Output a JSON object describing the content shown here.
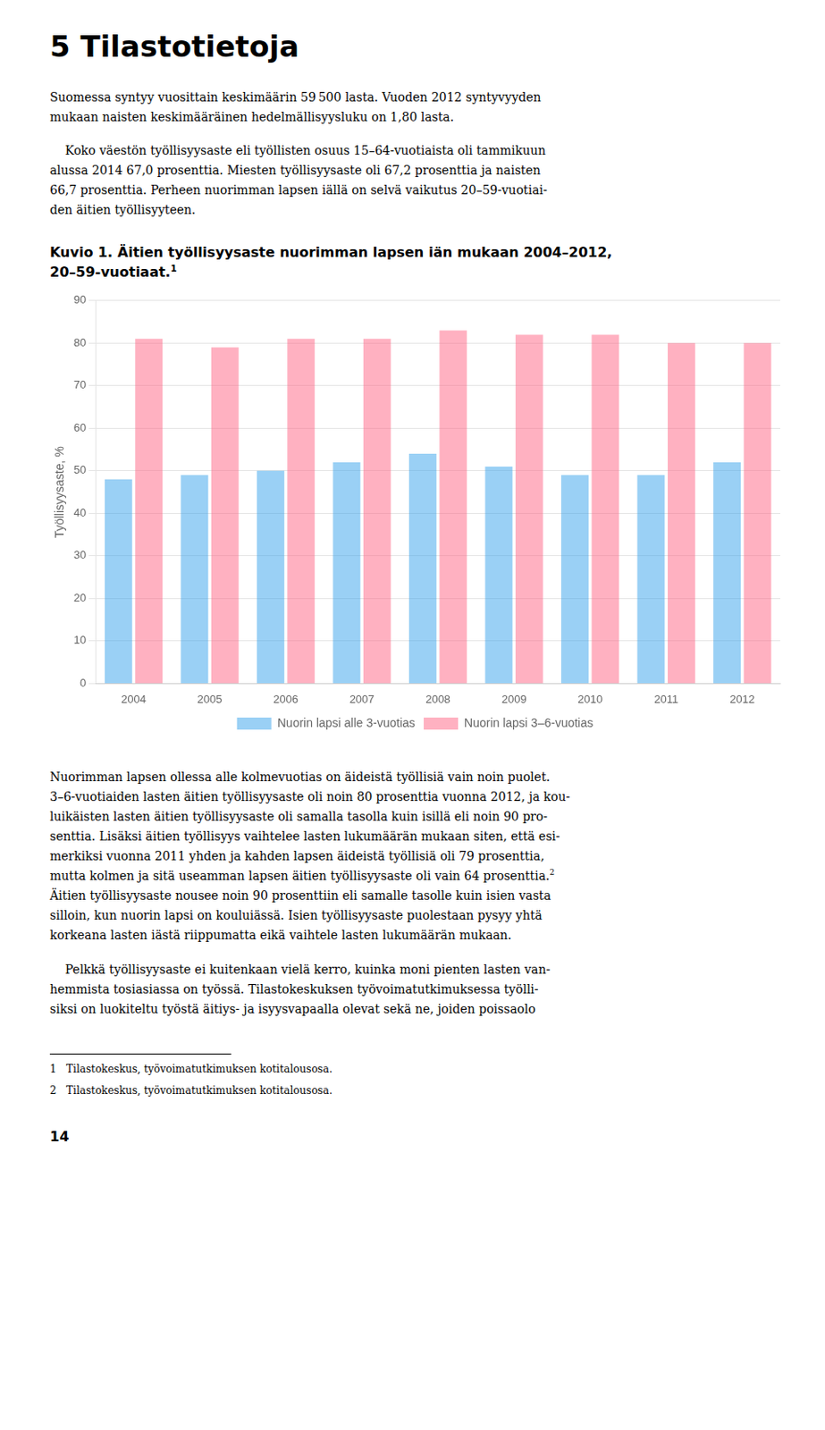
{
  "page": {
    "heading": "5 Tilastotietoja",
    "paragraphs_before": [
      [
        "Suomessa syntyy vuosittain keskimäärin 59 500 lasta. Vuoden 2012 syntyvyyden\nmukaan naisten keskimääräinen hedelmällisyysluku on 1,80 lasta."
      ],
      [
        "    Koko väestön työllisyysaste eli työllisten osuus 15–64-vuotiaista oli tammikuun\nalussa 2014 67,0 prosenttia. Miesten työllisyysaste oli 67,2 prosenttia ja naisten\n66,7 prosenttia. Perheen nuorimman lapsen iällä on selvä vaikutus 20–59-vuotiai-\nden äitien työllisyyteen."
      ]
    ],
    "paragraphs_after": [
      [
        "Nuorimman lapsen ollessa alle kolmevuotias on äideistä työllisiä vain noin puolet.\n3–6-vuotiaiden lasten äitien työllisyysaste oli noin 80 prosenttia vuonna 2012, ja kou-\nluikäisten lasten äitien työllisyysaste oli samalla tasolla kuin isillä eli noin 90 pro-\nsenttia. Lisäksi äitien työllisyys vaihtelee lasten lukumäärän mukaan siten, että esi-\nmerkiksi vuonna 2011 yhden ja kahden lapsen äideistä työllisiä oli 79 prosenttia,\nmutta kolmen ja sitä useamman lapsen äitien työllisyysaste oli vain 64 prosenttia.",
        {
          "sup": "2"
        },
        "\nÄitien työllisyysaste nousee noin 90 prosenttiin eli samalle tasolle kuin isien vasta\nsilloin, kun nuorin lapsi on kouluiässä. Isien työllisyysaste puolestaan pysyy yhtä\nkorkeana lasten iästä riippumatta eikä vaihtele lasten lukumäärän mukaan."
      ],
      [
        "    Pelkkä työllisyysaste ei kuitenkaan vielä kerro, kuinka moni pienten lasten van-\nhemmista tosiasiassa on työssä. Tilastokeskuksen työvoimatutkimuksessa työlli-\nsiksi on luokiteltu työstä äitiys- ja isyysvapaalla olevat sekä ne, joiden poissaolo"
      ]
    ],
    "footnotes": [
      "1   Tilastokeskus, työvoimatutkimuksen kotitalousosa.",
      "2   Tilastokeskus, työvoimatutkimuksen kotitalousosa."
    ],
    "page_number": "14"
  },
  "chart_data": {
    "type": "bar",
    "title": "Kuvio 1. Äitien työllisyysaste nuorimman lapsen iän mukaan 2004–2012,\n20–59-vuotiaat.",
    "annotations": [
      "1"
    ],
    "ylabel": "Työllisyysaste, %",
    "categories": [
      2004,
      2005,
      2006,
      2007,
      2008,
      2009,
      2010,
      2011,
      2012
    ],
    "series": [
      {
        "name": "Nuorin lapsi alle 3-vuotias",
        "values": [
          48,
          49,
          50,
          52,
          54,
          51,
          49,
          49,
          52
        ]
      },
      {
        "name": "Nuorin lapsi 3–6-vuotias",
        "values": [
          81,
          79,
          81,
          81,
          83,
          82,
          82,
          80,
          80
        ]
      }
    ],
    "ylim": [
      0,
      90
    ],
    "yticks": [
      0,
      10,
      20,
      30,
      40,
      50,
      60,
      70,
      80,
      90
    ],
    "grid": true,
    "legend": "bottom"
  }
}
